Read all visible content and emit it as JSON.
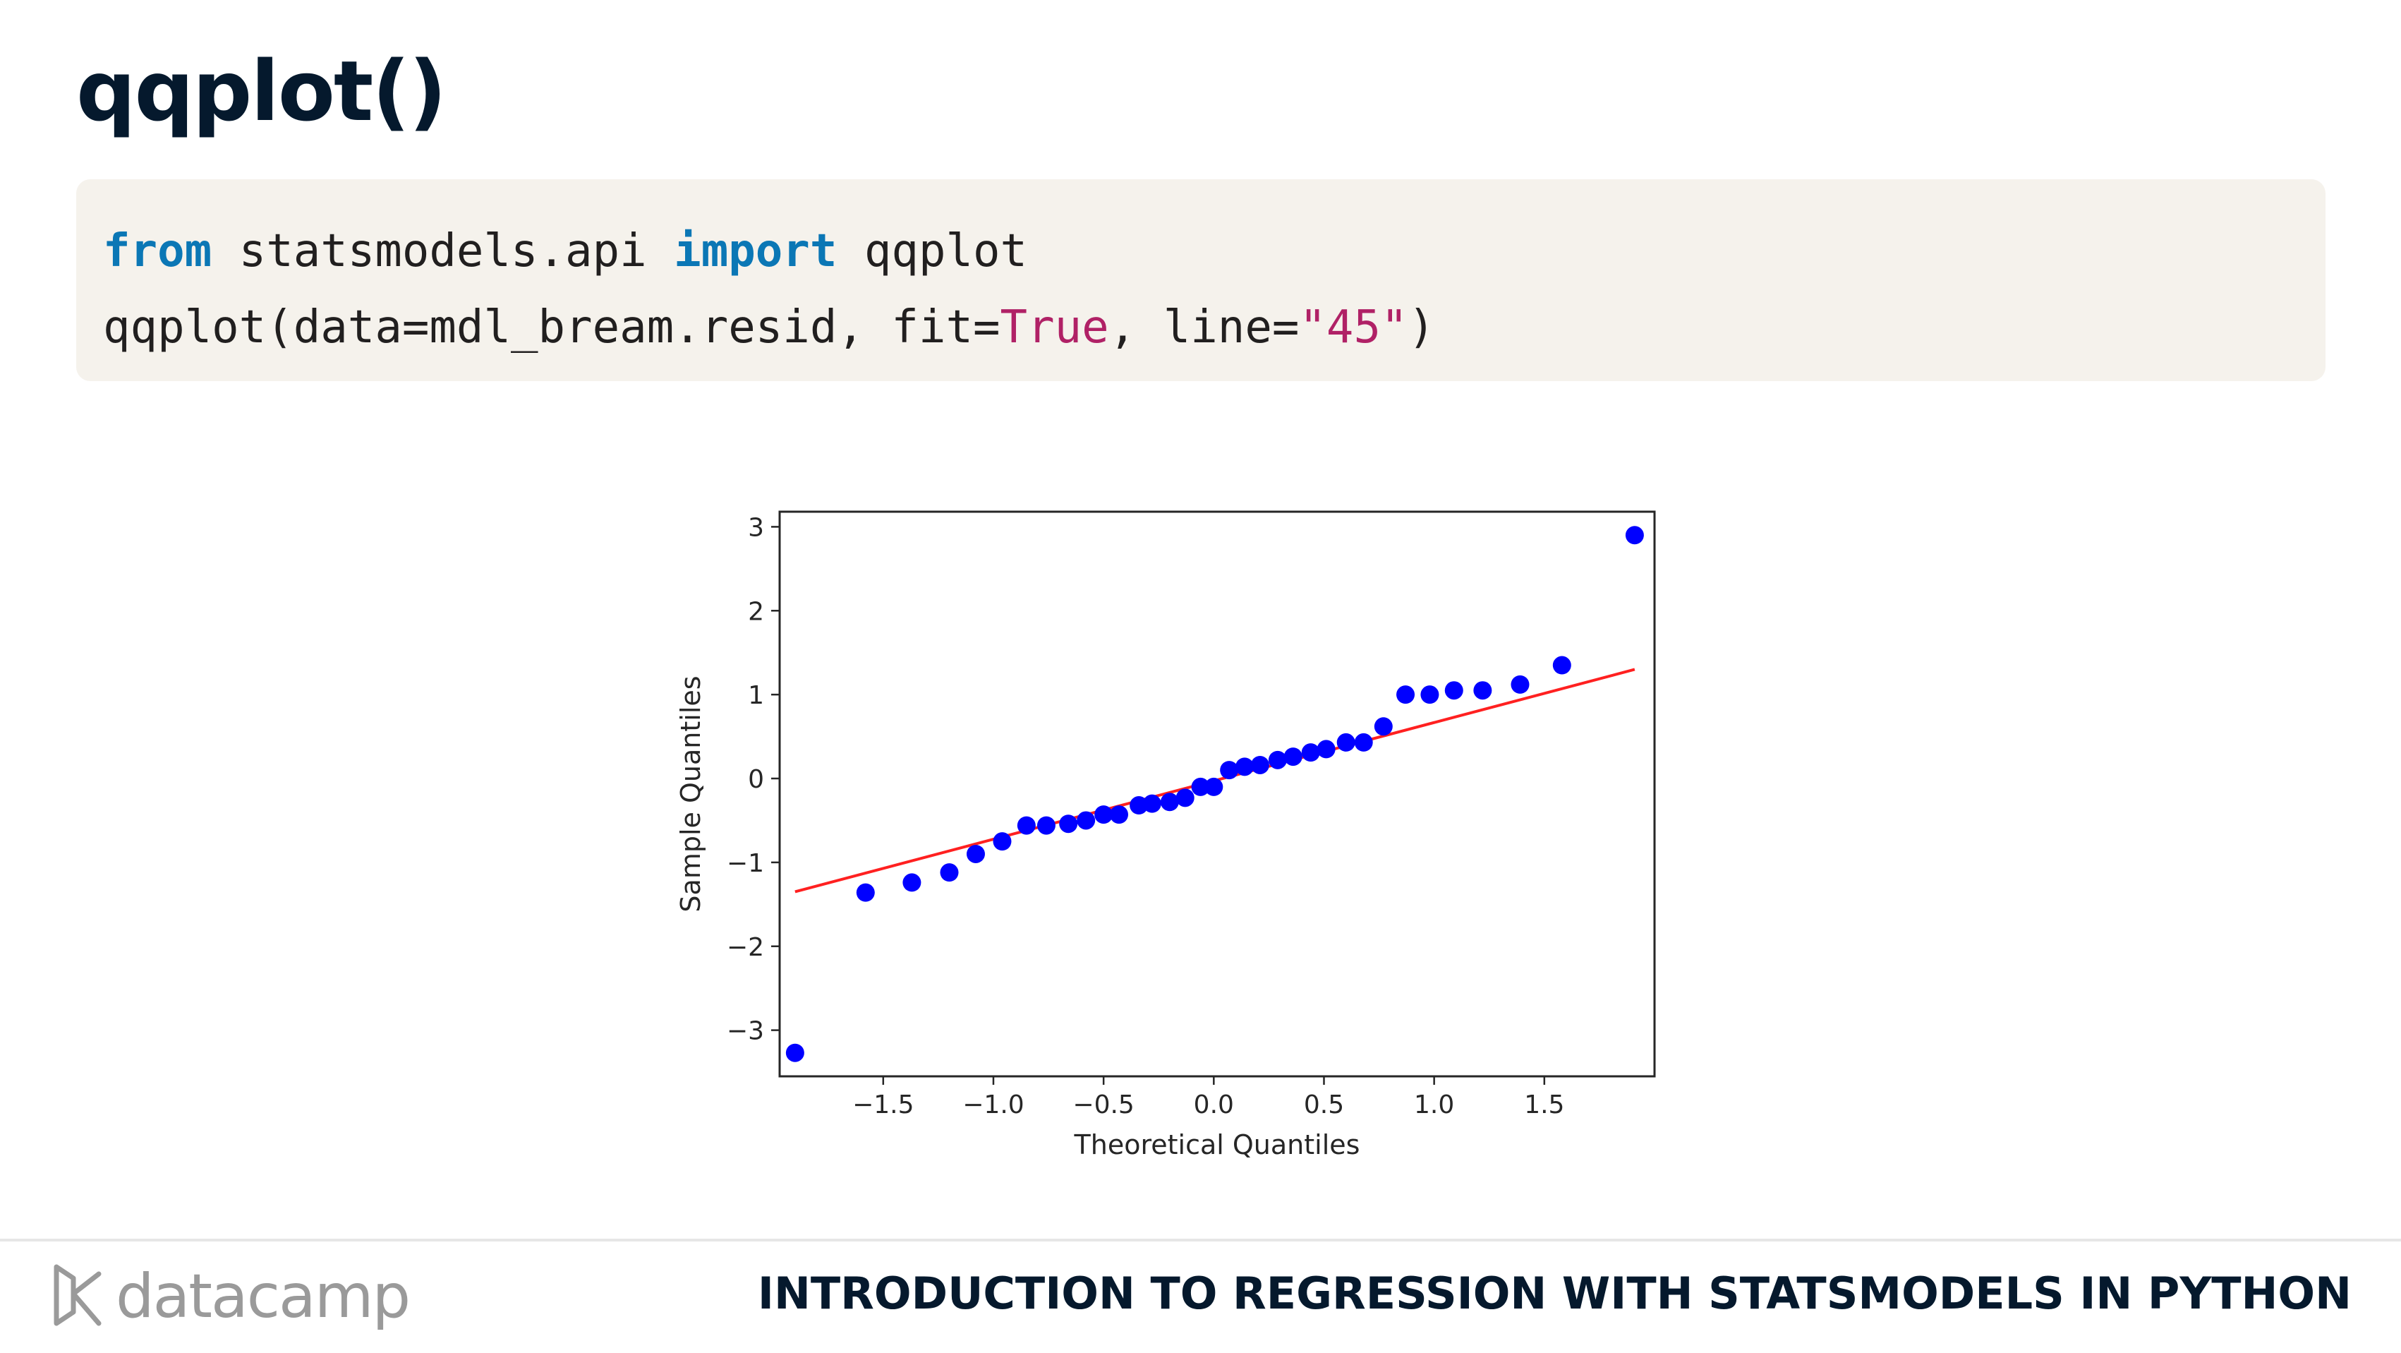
{
  "slide": {
    "title": "qqplot()"
  },
  "code": {
    "line1": {
      "kw_from": "from",
      "module": " statsmodels.api ",
      "kw_import": "import",
      "name": " qqplot"
    },
    "line2": {
      "call_start": "qqplot(data=mdl_bream.resid, fit=",
      "fit_value": "True",
      "mid": ", line=",
      "line_value": "\"45\"",
      "call_end": ")"
    }
  },
  "chart_data": {
    "type": "scatter",
    "xlabel": "Theoretical Quantiles",
    "ylabel": "Sample Quantiles",
    "xlim": [
      -1.97,
      2.0
    ],
    "ylim": [
      -3.55,
      3.18
    ],
    "xticks": [
      -1.5,
      -1.0,
      -0.5,
      0.0,
      0.5,
      1.0,
      1.5
    ],
    "xtick_labels": [
      "−1.5",
      "−1.0",
      "−0.5",
      "0.0",
      "0.5",
      "1.0",
      "1.5"
    ],
    "yticks": [
      3,
      2,
      1,
      0,
      -1,
      -2,
      -3
    ],
    "ytick_labels": [
      "3",
      "2",
      "1",
      "0",
      "−1",
      "−2",
      "−3"
    ],
    "grid": false,
    "point_color": "#0000ff",
    "line_color": "#ff2020",
    "points": [
      [
        -1.9,
        -3.27
      ],
      [
        -1.58,
        -1.36
      ],
      [
        -1.37,
        -1.24
      ],
      [
        -1.2,
        -1.12
      ],
      [
        -1.08,
        -0.9
      ],
      [
        -0.96,
        -0.75
      ],
      [
        -0.85,
        -0.56
      ],
      [
        -0.76,
        -0.56
      ],
      [
        -0.66,
        -0.54
      ],
      [
        -0.58,
        -0.5
      ],
      [
        -0.5,
        -0.43
      ],
      [
        -0.43,
        -0.43
      ],
      [
        -0.34,
        -0.32
      ],
      [
        -0.28,
        -0.3
      ],
      [
        -0.2,
        -0.28
      ],
      [
        -0.13,
        -0.23
      ],
      [
        -0.06,
        -0.1
      ],
      [
        0.0,
        -0.1
      ],
      [
        0.07,
        0.1
      ],
      [
        0.14,
        0.14
      ],
      [
        0.21,
        0.16
      ],
      [
        0.29,
        0.22
      ],
      [
        0.36,
        0.26
      ],
      [
        0.44,
        0.31
      ],
      [
        0.51,
        0.35
      ],
      [
        0.6,
        0.43
      ],
      [
        0.68,
        0.43
      ],
      [
        0.77,
        0.62
      ],
      [
        0.87,
        1.0
      ],
      [
        0.98,
        1.0
      ],
      [
        1.09,
        1.05
      ],
      [
        1.22,
        1.05
      ],
      [
        1.39,
        1.12
      ],
      [
        1.58,
        1.35
      ],
      [
        1.91,
        2.9
      ]
    ],
    "fit_line": [
      [
        -1.9,
        -1.35
      ],
      [
        1.91,
        1.3
      ]
    ]
  },
  "footer": {
    "brand": "datacamp",
    "course": "INTRODUCTION TO REGRESSION WITH STATSMODELS IN PYTHON",
    "logo_color": "#9a9a9a"
  }
}
